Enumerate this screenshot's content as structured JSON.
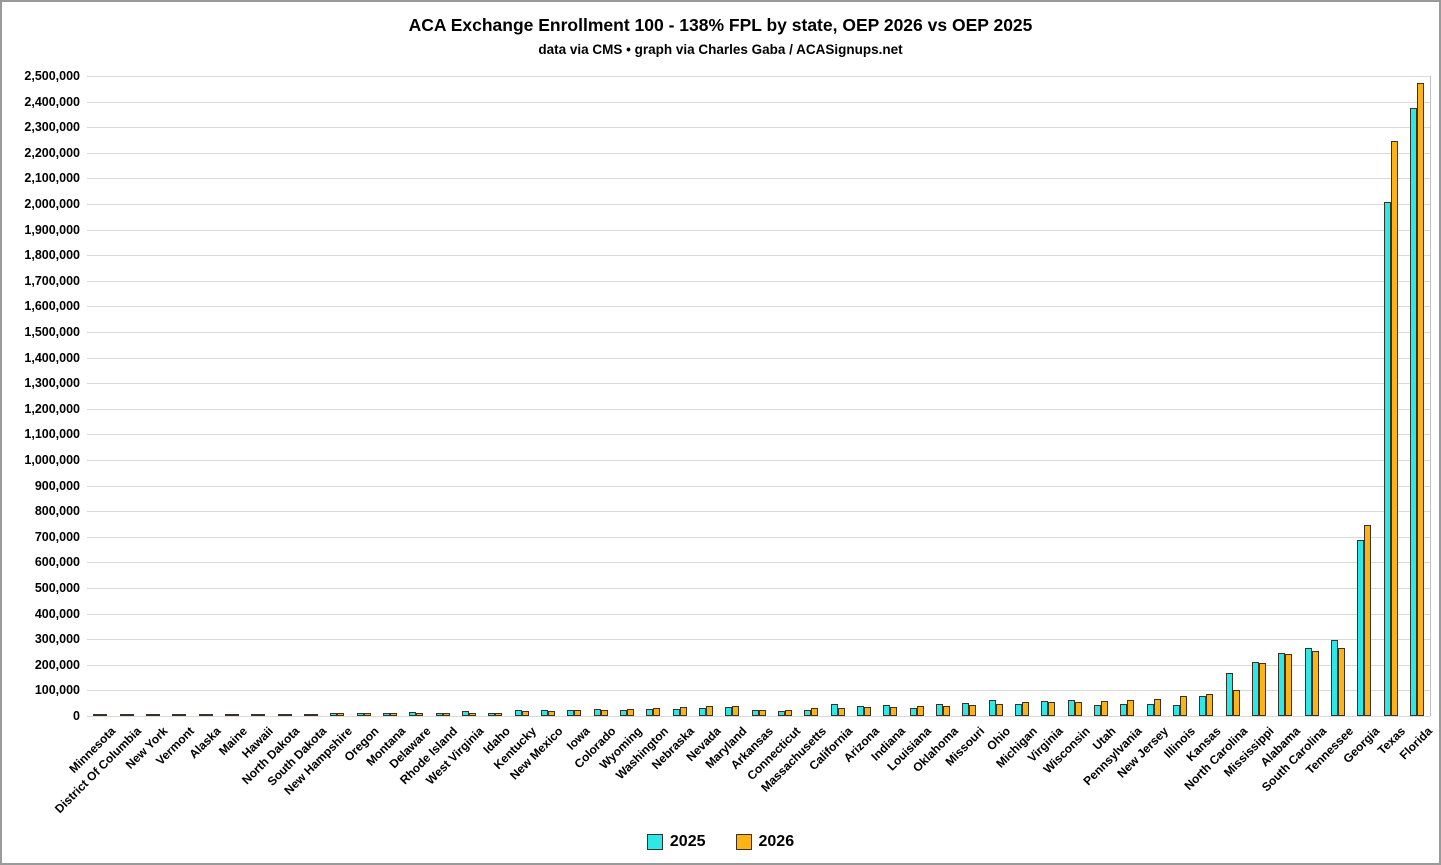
{
  "title": "ACA Exchange Enrollment 100 - 138% FPL by state, OEP 2026 vs OEP 2025",
  "subtitle": "data via CMS • graph via Charles Gaba / ACASignups.net",
  "colors": {
    "series_2025": "#2ee8e8",
    "series_2026": "#fbb316",
    "bar_outline": "#3a3226",
    "gridline": "#d9d9d9"
  },
  "chart_data": {
    "type": "bar",
    "title": "ACA Exchange Enrollment 100 - 138% FPL by state, OEP 2026 vs OEP 2025",
    "subtitle": "data via CMS • graph via Charles Gaba / ACASignups.net",
    "grid": true,
    "legend_position": "bottom",
    "ylim": [
      0,
      2500000
    ],
    "ytick_step": 100000,
    "xlabel": "",
    "ylabel": "",
    "categories": [
      "Minnesota",
      "District Of Columbia",
      "New York",
      "Vermont",
      "Alaska",
      "Maine",
      "Hawaii",
      "North Dakota",
      "South Dakota",
      "New Hampshire",
      "Oregon",
      "Montana",
      "Delaware",
      "Rhode Island",
      "West Virginia",
      "Idaho",
      "Kentucky",
      "New Mexico",
      "Iowa",
      "Colorado",
      "Wyoming",
      "Washington",
      "Nebraska",
      "Nevada",
      "Maryland",
      "Arkansas",
      "Connecticut",
      "Massachusetts",
      "California",
      "Arizona",
      "Indiana",
      "Louisiana",
      "Oklahoma",
      "Missouri",
      "Ohio",
      "Michigan",
      "Virginia",
      "Wisconsin",
      "Utah",
      "Pennsylvania",
      "New Jersey",
      "Illinois",
      "Kansas",
      "North Carolina",
      "Mississippi",
      "Alabama",
      "South Carolina",
      "Tennessee",
      "Georgia",
      "Texas",
      "Florida"
    ],
    "series": [
      {
        "name": "2025",
        "color": "#2ee8e8",
        "values": [
          400,
          400,
          600,
          800,
          900,
          1200,
          1300,
          1500,
          1800,
          2000,
          2300,
          2500,
          8000,
          3000,
          10000,
          4500,
          14000,
          15000,
          16000,
          18000,
          16000,
          18000,
          21000,
          25000,
          28000,
          15000,
          10000,
          17000,
          38000,
          31000,
          35000,
          25000,
          39000,
          43000,
          56000,
          38000,
          49000,
          53000,
          35000,
          38000,
          38000,
          36000,
          71000,
          161000,
          205000,
          239000,
          256000,
          288000,
          681000,
          2000000,
          2369000
        ]
      },
      {
        "name": "2026",
        "color": "#fbb316",
        "values": [
          300,
          400,
          500,
          700,
          800,
          1100,
          1200,
          1500,
          1800,
          2000,
          2300,
          2500,
          3000,
          2500,
          5000,
          4500,
          13000,
          13500,
          14000,
          16000,
          19000,
          24000,
          27000,
          30000,
          33000,
          17000,
          16000,
          24000,
          24000,
          27000,
          29000,
          30000,
          31000,
          36000,
          38000,
          45000,
          47000,
          48000,
          52000,
          56000,
          60000,
          70000,
          79000,
          92000,
          201000,
          235000,
          245000,
          256000,
          738000,
          2240000,
          2465000
        ]
      }
    ]
  }
}
